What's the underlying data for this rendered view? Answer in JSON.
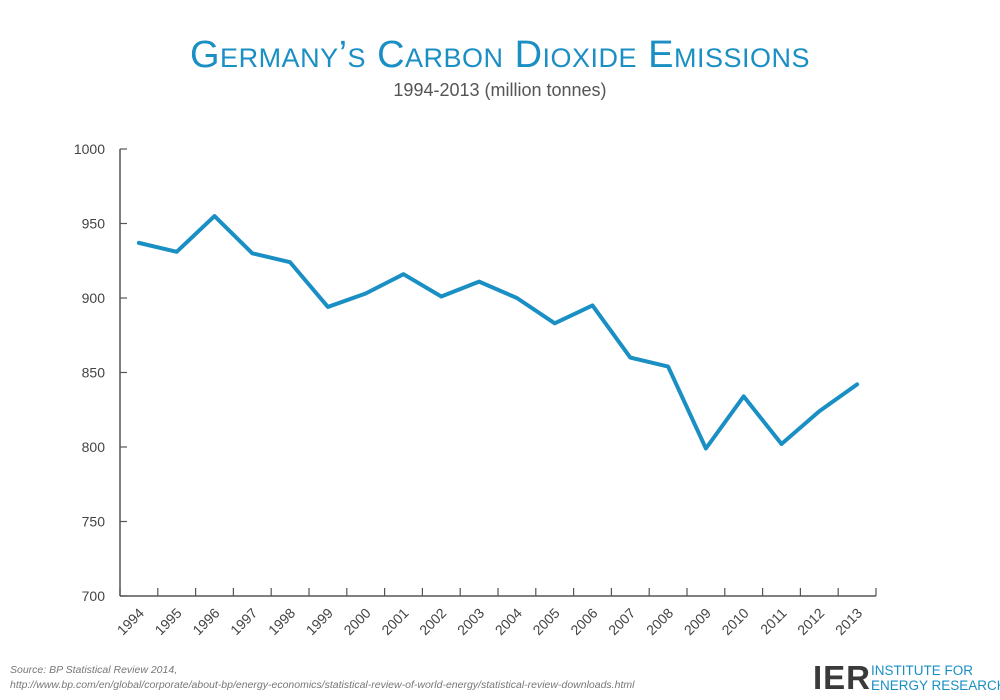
{
  "chart_data": {
    "type": "line",
    "title": "Germany’s Carbon Dioxide Emissions",
    "subtitle": "1994-2013 (million tonnes)",
    "xlabel": "",
    "ylabel": "",
    "categories": [
      "1994",
      "1995",
      "1996",
      "1997",
      "1998",
      "1999",
      "2000",
      "2001",
      "2002",
      "2003",
      "2004",
      "2005",
      "2006",
      "2007",
      "2008",
      "2009",
      "2010",
      "2011",
      "2012",
      "2013"
    ],
    "values": [
      937,
      931,
      955,
      930,
      924,
      894,
      903,
      916,
      901,
      911,
      900,
      883,
      895,
      860,
      854,
      799,
      834,
      802,
      824,
      842
    ],
    "yticks": [
      "700",
      "750",
      "800",
      "850",
      "900",
      "950",
      "1000"
    ],
    "ylim": [
      700,
      1000
    ],
    "grid": false,
    "colors": {
      "line": "#1a8fc4",
      "axis": "#555555"
    }
  },
  "source": {
    "line1": "Source: BP Statistical Review 2014,",
    "line2": "http://www.bp.com/en/global/corporate/about-bp/energy-economics/statistical-review-of-world-energy/statistical-review-downloads.html"
  },
  "logo": {
    "mark": "IER",
    "line1": "INSTITUTE FOR",
    "line2": "ENERGY RESEARCH"
  }
}
